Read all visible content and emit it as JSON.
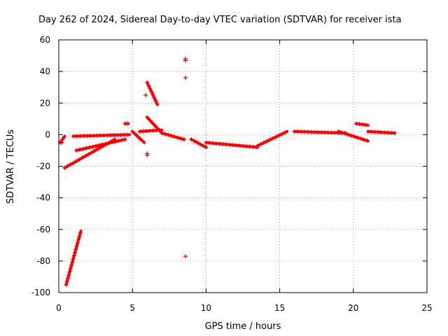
{
  "chart_data": {
    "type": "scatter",
    "title": "Day 262 of 2024, Sidereal Day-to-day VTEC variation (SDTVAR) for receiver ista",
    "xlabel": "GPS time / hours",
    "ylabel": "SDTVAR / TECUs",
    "xlim": [
      0,
      25
    ],
    "ylim": [
      -100,
      60
    ],
    "xticks": [
      0,
      5,
      10,
      15,
      20,
      25
    ],
    "yticks": [
      -100,
      -80,
      -60,
      -40,
      -20,
      0,
      20,
      40,
      60
    ],
    "xtick_labels": [
      "0",
      "5",
      "10",
      "15",
      "20",
      "25"
    ],
    "ytick_labels": [
      "-100",
      "-80",
      "-60",
      "-40",
      "-20",
      "0",
      "20",
      "40",
      "60"
    ],
    "grid": true,
    "marker": "+",
    "series_color": "#ff0000",
    "segments": [
      {
        "name": "steep-drop",
        "x0": 0.5,
        "y0": -95,
        "x1": 1.5,
        "y1": -61
      },
      {
        "name": "lower-rise",
        "x0": 0.4,
        "y0": -21,
        "x1": 3.8,
        "y1": -3
      },
      {
        "name": "mid-rise",
        "x0": 1.2,
        "y0": -10,
        "x1": 4.5,
        "y1": -3
      },
      {
        "name": "near-zero-a",
        "x0": 1.0,
        "y0": -1,
        "x1": 4.8,
        "y1": 0
      },
      {
        "name": "start-cluster",
        "x0": 0.1,
        "y0": -5,
        "x1": 0.4,
        "y1": -1
      },
      {
        "name": "bump",
        "x0": 4.5,
        "y0": 7,
        "x1": 4.7,
        "y1": 7
      },
      {
        "name": "hump-a",
        "x0": 5.0,
        "y0": 2,
        "x1": 5.8,
        "y1": -5
      },
      {
        "name": "peak-drop",
        "x0": 6.0,
        "y0": 33,
        "x1": 6.7,
        "y1": 19
      },
      {
        "name": "hump-b",
        "x0": 6.0,
        "y0": 11,
        "x1": 7.0,
        "y1": 1
      },
      {
        "name": "mid-a",
        "x0": 5.5,
        "y0": 2,
        "x1": 7.0,
        "y1": 3
      },
      {
        "name": "plateau",
        "x0": 7.0,
        "y0": 1,
        "x1": 8.5,
        "y1": -3
      },
      {
        "name": "dip-a",
        "x0": 9.0,
        "y0": -3,
        "x1": 10.0,
        "y1": -8
      },
      {
        "name": "long-dip",
        "x0": 10.0,
        "y0": -5,
        "x1": 13.5,
        "y1": -8
      },
      {
        "name": "recovery",
        "x0": 13.5,
        "y0": -7,
        "x1": 15.5,
        "y1": 2
      },
      {
        "name": "late-band",
        "x0": 16.0,
        "y0": 2,
        "x1": 19.5,
        "y1": 1
      },
      {
        "name": "late-decline",
        "x0": 19.0,
        "y0": 2,
        "x1": 21.0,
        "y1": -4
      },
      {
        "name": "tail",
        "x0": 21.0,
        "y0": 2,
        "x1": 22.8,
        "y1": 1
      },
      {
        "name": "high-bar",
        "x0": 20.2,
        "y0": 7,
        "x1": 21.0,
        "y1": 6
      }
    ],
    "points": [
      {
        "x": 8.6,
        "y": 48
      },
      {
        "x": 8.6,
        "y": 47
      },
      {
        "x": 8.6,
        "y": 36
      },
      {
        "x": 8.6,
        "y": -77
      },
      {
        "x": 6.0,
        "y": -13
      },
      {
        "x": 6.0,
        "y": -12
      },
      {
        "x": 5.9,
        "y": 25
      },
      {
        "x": 0.2,
        "y": -5
      }
    ]
  }
}
